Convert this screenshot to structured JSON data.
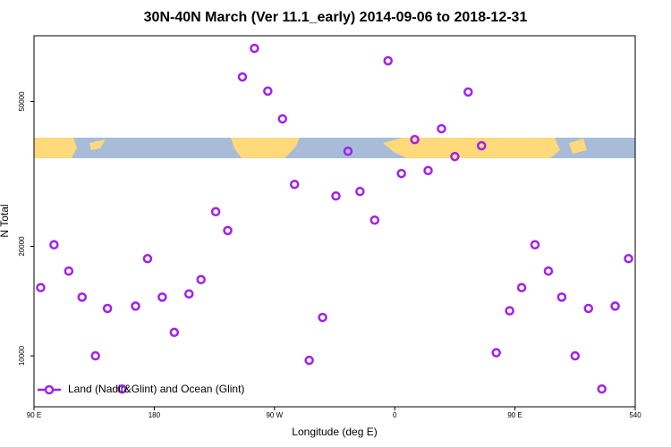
{
  "chart_data": {
    "type": "scatter",
    "title": "30N-40N March (Ver 11.1_early)   2014-09-06 to 2018-12-31",
    "x_label": "Longitude (deg E)",
    "y_label": "N Total",
    "log_y": true,
    "legend": "bottom left",
    "xlim": [
      90,
      540
    ],
    "xticks": [
      {
        "value": 90,
        "label": "90 E"
      },
      180,
      {
        "value": 270,
        "label": "90 W"
      },
      {
        "value": 360,
        "label": "0"
      },
      {
        "value": 450,
        "label": "90 E"
      },
      540
    ],
    "ylim": [
      7245,
      75800
    ],
    "yticks": [
      10000,
      20000,
      50000
    ],
    "x": [
      95,
      105,
      116,
      126,
      136,
      145,
      156,
      166,
      175,
      186,
      195,
      206,
      215,
      226,
      235,
      246,
      255,
      265,
      276,
      285,
      296,
      306,
      316,
      325,
      334,
      345,
      355,
      365,
      375,
      385,
      395,
      405,
      415,
      425,
      436,
      446,
      455,
      465,
      475,
      485,
      495,
      505,
      515,
      525,
      535
    ],
    "series": [
      {
        "name": "Land (Nadir&Glint) and Ocean (Glint)",
        "color": "#a020f0",
        "values": [
          15400,
          20200,
          17100,
          14500,
          10000,
          13500,
          8110,
          13700,
          18500,
          14500,
          11600,
          14800,
          16200,
          24900,
          22100,
          58400,
          70000,
          53400,
          44800,
          29600,
          9720,
          12750,
          27500,
          36500,
          28300,
          23600,
          64700,
          31700,
          39300,
          32300,
          42100,
          35300,
          53100,
          37800,
          10200,
          13300,
          15400,
          20200,
          17100,
          14500,
          10000,
          13500,
          8110,
          13700,
          18500
        ]
      }
    ]
  }
}
